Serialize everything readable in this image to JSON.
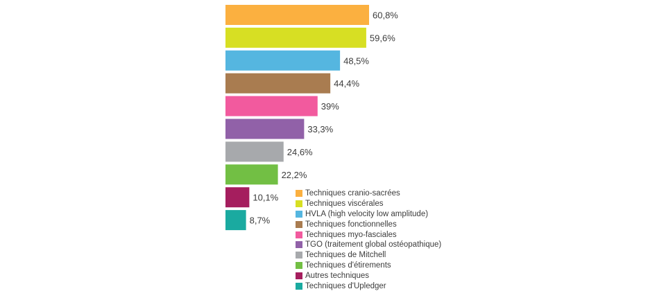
{
  "chart_data": {
    "type": "bar",
    "orientation": "horizontal",
    "title": "",
    "xlabel": "",
    "ylabel": "",
    "xlim": [
      0,
      100
    ],
    "grid": false,
    "legend_position": "bottom-right",
    "categories": [
      "Techniques cranio-sacrées",
      "Techniques viscérales",
      "HVLA (high velocity low amplitude)",
      "Techniques fonctionnelles",
      "Techniques myo-fasciales",
      "TGO (traitement global ostéopathique)",
      "Techniques de Mitchell",
      "Techniques d'étirements",
      "Autres techniques",
      "Techniques d'Upledger"
    ],
    "values": [
      60.8,
      59.6,
      48.5,
      44.4,
      39,
      33.3,
      24.6,
      22.2,
      10.1,
      8.7
    ],
    "value_labels": [
      "60,8%",
      "59,6%",
      "48,5%",
      "44,4%",
      "39%",
      "33,3%",
      "24,6%",
      "22,2%",
      "10,1%",
      "8,7%"
    ],
    "colors": [
      "#fbb040",
      "#d7df23",
      "#55b6e0",
      "#a97c50",
      "#f25a9e",
      "#9161a8",
      "#a7a9ac",
      "#72bf44",
      "#a51e5e",
      "#1aaaa0"
    ]
  }
}
